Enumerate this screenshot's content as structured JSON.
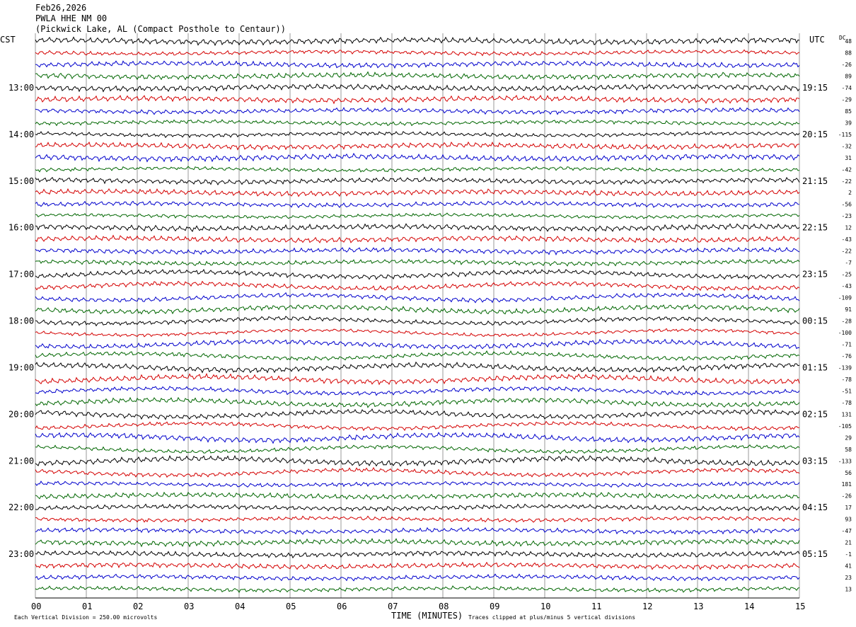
{
  "header": {
    "date": "Feb26,2026",
    "station": "PWLA HHE NM 00",
    "location": "(Pickwick Lake, AL (Compact Posthole to Centaur))"
  },
  "axis_labels": {
    "left_zone": "CST",
    "right_zone": "UTC",
    "dc_header": "DC",
    "x_title": "TIME (MINUTES)",
    "scale_note": "Each Vertical Division =  250.00 microvolts",
    "clip_note": "Traces clipped at plus/minus 5 vertical divisions"
  },
  "chart_data": {
    "type": "line",
    "title": "PWLA HHE NM 00",
    "xlabel": "TIME (MINUTES)",
    "xlim": [
      0,
      15
    ],
    "x_ticks": [
      "00",
      "01",
      "02",
      "03",
      "04",
      "05",
      "06",
      "07",
      "08",
      "09",
      "10",
      "11",
      "12",
      "13",
      "14",
      "15"
    ],
    "trace_colors": [
      "#000000",
      "#d40000",
      "#0000cc",
      "#006600"
    ],
    "num_traces": 48,
    "minutes_per_trace": 15,
    "left_hour_labels": [
      "13:00",
      "14:00",
      "15:00",
      "16:00",
      "17:00",
      "18:00",
      "19:00",
      "20:00",
      "21:00",
      "22:00",
      "23:00"
    ],
    "right_hour_labels": [
      "19:15",
      "20:15",
      "21:15",
      "22:15",
      "23:15",
      "00:15",
      "01:15",
      "02:15",
      "03:15",
      "04:15",
      "05:15"
    ],
    "first_labeled_trace": 4,
    "dc_offsets": [
      48,
      88,
      -26,
      89,
      -74,
      -29,
      85,
      39,
      -115,
      -32,
      31,
      -42,
      -22,
      2,
      -56,
      -23,
      12,
      -43,
      -22,
      -7,
      -25,
      -43,
      -109,
      91,
      -28,
      -100,
      -71,
      -76,
      -139,
      -78,
      -51,
      -78,
      131,
      -105,
      29,
      58,
      -133,
      56,
      181,
      -26,
      17,
      93,
      -47,
      21,
      -1,
      41,
      23,
      13
    ]
  }
}
